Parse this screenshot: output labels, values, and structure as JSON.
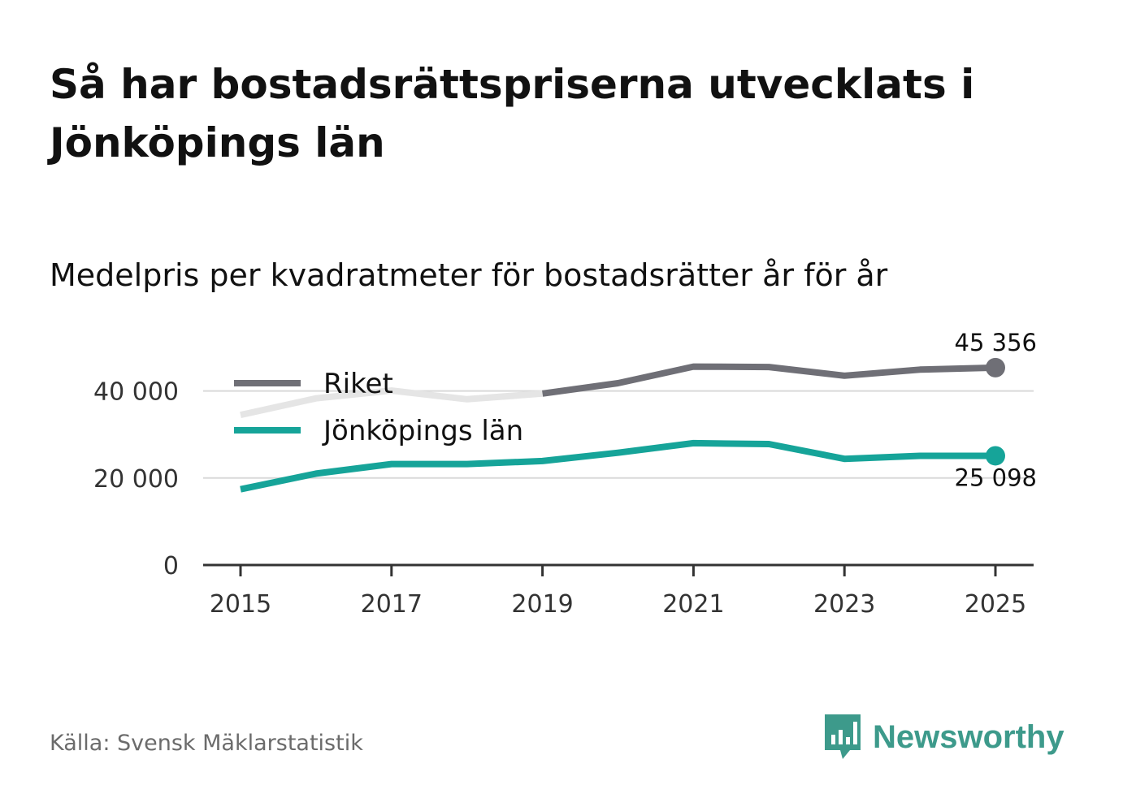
{
  "title": "Så har bostadsrättspriserna utvecklats i Jönköpings län",
  "subtitle": "Medelpris per kvadratmeter för bostadsrätter år för år",
  "source": "Källa: Svensk Mäklarstatistik",
  "brand": "Newsworthy",
  "colors": {
    "riket": "#6f6f76",
    "riket_faded": "#e5e5e5",
    "jonkoping": "#16a499",
    "grid": "#d9d9d9",
    "axis": "#333333",
    "brand": "#3d9a8b"
  },
  "chart_data": {
    "type": "line",
    "title": "Medelpris per kvadratmeter för bostadsrätter år för år",
    "xlabel": "",
    "ylabel": "",
    "x": [
      2015,
      2016,
      2017,
      2018,
      2019,
      2020,
      2021,
      2022,
      2023,
      2024,
      2025
    ],
    "x_ticks": [
      "2015",
      "2017",
      "2019",
      "2021",
      "2023",
      "2025"
    ],
    "y_ticks": [
      0,
      20000,
      40000
    ],
    "y_tick_labels": [
      "0",
      "20 000",
      "40 000"
    ],
    "ylim": [
      0,
      50000
    ],
    "grid": true,
    "legend": "top-left",
    "series": [
      {
        "name": "Riket",
        "values": [
          34500,
          38300,
          40100,
          38100,
          39400,
          41800,
          45600,
          45500,
          43500,
          44900,
          45356
        ],
        "end_label": "45 356"
      },
      {
        "name": "Jönköpings län",
        "values": [
          17400,
          21000,
          23200,
          23200,
          23900,
          25800,
          28000,
          27800,
          24400,
          25100,
          25098
        ],
        "end_label": "25 098"
      }
    ]
  }
}
